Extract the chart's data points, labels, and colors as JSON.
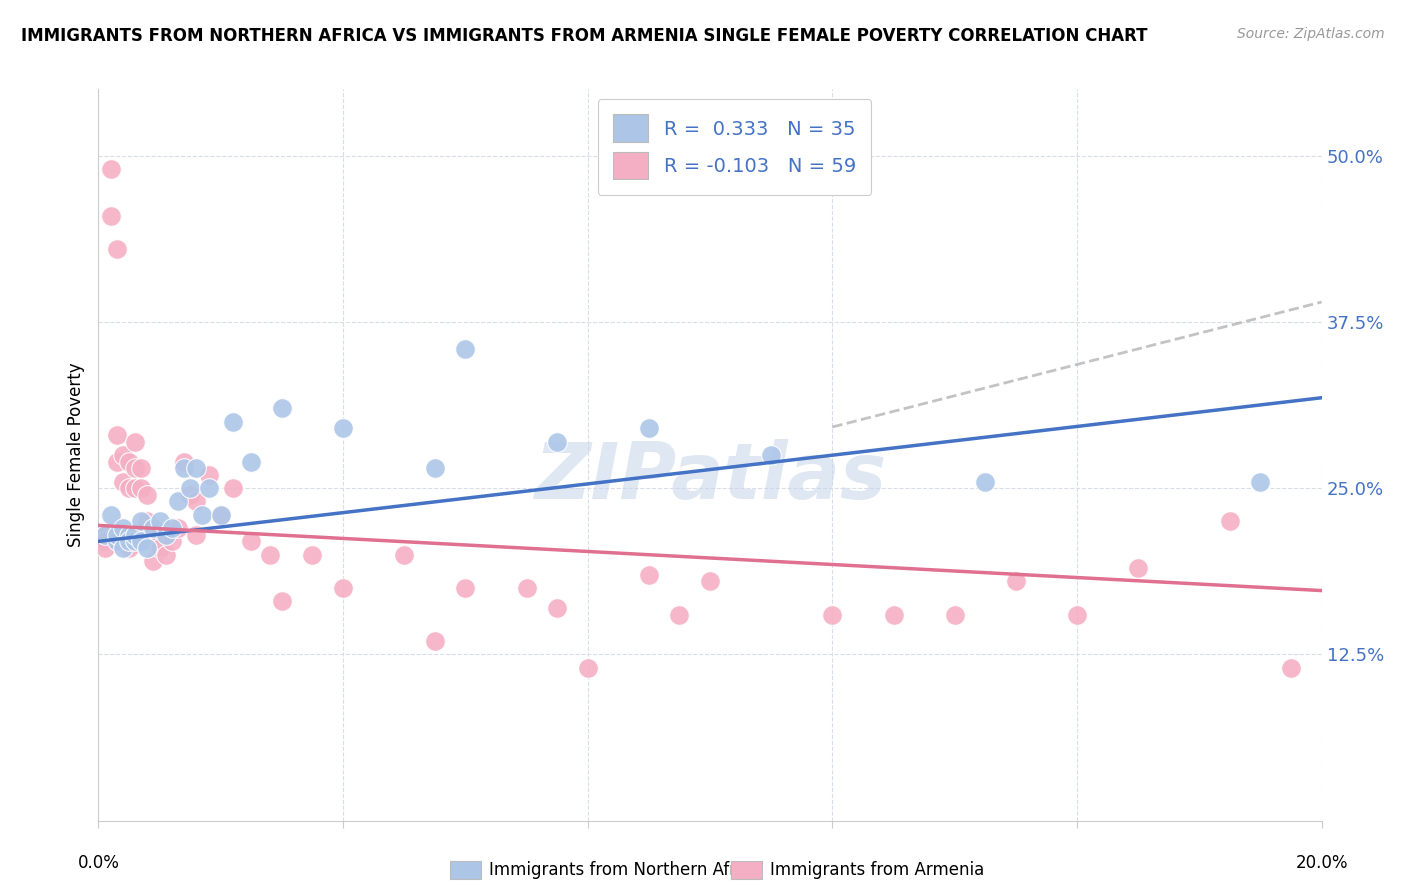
{
  "title": "IMMIGRANTS FROM NORTHERN AFRICA VS IMMIGRANTS FROM ARMENIA SINGLE FEMALE POVERTY CORRELATION CHART",
  "source": "Source: ZipAtlas.com",
  "ylabel": "Single Female Poverty",
  "yticks_labels": [
    "12.5%",
    "25.0%",
    "37.5%",
    "50.0%"
  ],
  "ytick_vals": [
    0.125,
    0.25,
    0.375,
    0.5
  ],
  "xlim": [
    0.0,
    0.2
  ],
  "ylim": [
    0.0,
    0.55
  ],
  "legend_blue_R": "0.333",
  "legend_blue_N": "35",
  "legend_pink_R": "-0.103",
  "legend_pink_N": "59",
  "blue_color": "#adc6e8",
  "pink_color": "#f4afc4",
  "blue_line_color": "#4472c4",
  "pink_line_color": "#e07090",
  "dashed_color": "#aaaaaa",
  "watermark": "ZIPatlas",
  "blue_scatter_x": [
    0.001,
    0.002,
    0.003,
    0.003,
    0.004,
    0.004,
    0.005,
    0.005,
    0.006,
    0.006,
    0.007,
    0.007,
    0.008,
    0.009,
    0.01,
    0.011,
    0.012,
    0.013,
    0.014,
    0.015,
    0.016,
    0.017,
    0.018,
    0.02,
    0.022,
    0.025,
    0.03,
    0.04,
    0.055,
    0.06,
    0.075,
    0.09,
    0.11,
    0.145,
    0.19
  ],
  "blue_scatter_y": [
    0.215,
    0.23,
    0.21,
    0.215,
    0.22,
    0.205,
    0.215,
    0.21,
    0.21,
    0.215,
    0.225,
    0.21,
    0.205,
    0.22,
    0.225,
    0.215,
    0.22,
    0.24,
    0.265,
    0.25,
    0.265,
    0.23,
    0.25,
    0.23,
    0.3,
    0.27,
    0.31,
    0.295,
    0.265,
    0.355,
    0.285,
    0.295,
    0.275,
    0.255,
    0.255
  ],
  "pink_scatter_x": [
    0.001,
    0.001,
    0.001,
    0.002,
    0.002,
    0.003,
    0.003,
    0.003,
    0.004,
    0.004,
    0.004,
    0.005,
    0.005,
    0.005,
    0.006,
    0.006,
    0.006,
    0.007,
    0.007,
    0.008,
    0.008,
    0.008,
    0.009,
    0.009,
    0.009,
    0.01,
    0.01,
    0.011,
    0.012,
    0.013,
    0.014,
    0.015,
    0.016,
    0.016,
    0.018,
    0.02,
    0.022,
    0.025,
    0.028,
    0.03,
    0.035,
    0.04,
    0.05,
    0.055,
    0.06,
    0.07,
    0.075,
    0.08,
    0.09,
    0.095,
    0.1,
    0.12,
    0.13,
    0.14,
    0.15,
    0.16,
    0.17,
    0.185,
    0.195
  ],
  "pink_scatter_y": [
    0.215,
    0.21,
    0.205,
    0.49,
    0.455,
    0.43,
    0.29,
    0.27,
    0.275,
    0.255,
    0.21,
    0.27,
    0.25,
    0.205,
    0.285,
    0.265,
    0.25,
    0.265,
    0.25,
    0.245,
    0.225,
    0.215,
    0.215,
    0.21,
    0.195,
    0.215,
    0.205,
    0.2,
    0.21,
    0.22,
    0.27,
    0.245,
    0.24,
    0.215,
    0.26,
    0.23,
    0.25,
    0.21,
    0.2,
    0.165,
    0.2,
    0.175,
    0.2,
    0.135,
    0.175,
    0.175,
    0.16,
    0.115,
    0.185,
    0.155,
    0.18,
    0.155,
    0.155,
    0.155,
    0.18,
    0.155,
    0.19,
    0.225,
    0.115
  ],
  "blue_line_x0": 0.0,
  "blue_line_x1": 0.2,
  "blue_line_y0": 0.21,
  "blue_line_y1": 0.318,
  "pink_line_x0": 0.0,
  "pink_line_x1": 0.2,
  "pink_line_y0": 0.222,
  "pink_line_y1": 0.173,
  "dashed_line_x0": 0.12,
  "dashed_line_x1": 0.2,
  "dashed_line_y0": 0.296,
  "dashed_line_y1": 0.39
}
